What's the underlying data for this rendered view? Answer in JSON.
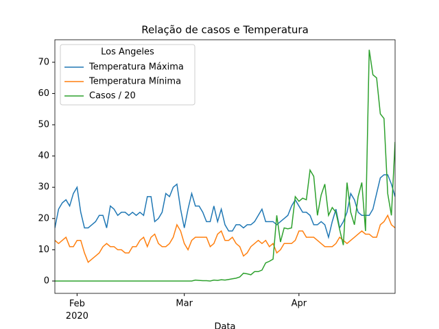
{
  "chart_data": {
    "type": "line",
    "title": "Relação de casos e Temperatura",
    "x_label": "Data",
    "legend_title": "Los Angeles",
    "legend": "upper left",
    "x": [
      0,
      1,
      2,
      3,
      4,
      5,
      6,
      7,
      8,
      9,
      10,
      11,
      12,
      13,
      14,
      15,
      16,
      17,
      18,
      19,
      20,
      21,
      22,
      23,
      24,
      25,
      26,
      27,
      28,
      29,
      30,
      31,
      32,
      33,
      34,
      35,
      36,
      37,
      38,
      39,
      40,
      41,
      42,
      43,
      44,
      45,
      46,
      47,
      48,
      49,
      50,
      51,
      52,
      53,
      54,
      55,
      56,
      57,
      58,
      59,
      60,
      61,
      62,
      63,
      64,
      65,
      66,
      67,
      68,
      69,
      70,
      71,
      72,
      73,
      74,
      75,
      76,
      77,
      78,
      79,
      80,
      81,
      82,
      83,
      84,
      85,
      86,
      87,
      88,
      89,
      90,
      91,
      92
    ],
    "xlim": [
      0,
      92
    ],
    "xticks": [
      {
        "value": 6,
        "label": "Feb\n2020"
      },
      {
        "value": 35,
        "label": "Mar"
      },
      {
        "value": 66,
        "label": "Apr"
      }
    ],
    "ylim": [
      -3.95,
      77.2
    ],
    "yticks": [
      0,
      10,
      20,
      30,
      40,
      50,
      60,
      70
    ],
    "series": [
      {
        "name": "Temperatura Máxima",
        "color": "#1f77b4",
        "values": [
          17,
          23,
          25,
          26,
          24,
          28,
          30,
          22,
          17,
          17,
          18,
          19,
          21,
          21,
          17,
          24,
          23,
          21,
          22,
          22,
          21,
          22,
          21,
          22,
          21,
          27,
          27,
          19,
          20,
          22,
          28,
          27,
          30,
          31,
          23,
          17,
          23,
          28,
          24,
          24,
          22,
          19,
          19,
          24,
          19,
          23,
          18,
          16,
          16,
          18,
          18,
          17,
          18,
          18,
          19,
          21,
          23,
          19,
          19,
          19,
          18,
          19,
          20,
          21,
          24,
          26,
          24,
          22,
          22,
          21,
          18,
          18,
          19,
          18,
          14,
          19,
          23,
          17,
          19,
          22,
          28,
          26,
          22,
          21,
          21,
          21,
          23,
          28,
          33,
          34,
          34,
          31,
          27
        ]
      },
      {
        "name": "Temperatura Mínima",
        "color": "#ff7f0e",
        "values": [
          13,
          12,
          13,
          14,
          11,
          11,
          13,
          13,
          9,
          6,
          7,
          8,
          9,
          11,
          12,
          11,
          11,
          10,
          10,
          9,
          9,
          11,
          11,
          13,
          14,
          11,
          14,
          15,
          12,
          11,
          11,
          12,
          14,
          18,
          16,
          12,
          10,
          13,
          14,
          14,
          14,
          14,
          11,
          12,
          15,
          16,
          13,
          13,
          14,
          12,
          11,
          8,
          9,
          11,
          12,
          13,
          12,
          13,
          11,
          12,
          9,
          10,
          12,
          12,
          12,
          13,
          16,
          16,
          14,
          14,
          14,
          13,
          12,
          11,
          11,
          11,
          12,
          14,
          13,
          12,
          13,
          14,
          15,
          16,
          15,
          15,
          14,
          14,
          18,
          19,
          21,
          18,
          17
        ]
      },
      {
        "name": "Casos / 20",
        "color": "#2ca02c",
        "values": [
          0,
          0,
          0,
          0,
          0,
          0,
          0,
          0,
          0,
          0,
          0,
          0,
          0,
          0,
          0,
          0,
          0,
          0,
          0,
          0,
          0,
          0,
          0,
          0,
          0,
          0,
          0,
          0,
          0,
          0,
          0,
          0,
          0,
          0,
          0,
          0,
          0,
          0,
          0.3,
          0.2,
          0.1,
          0.1,
          0,
          0.3,
          0.2,
          0.4,
          0.3,
          0.5,
          0.7,
          0.9,
          1.3,
          2.5,
          2.3,
          2,
          3,
          3,
          3.5,
          5.8,
          6.3,
          7,
          21,
          12.5,
          17,
          16.7,
          17,
          27,
          25.5,
          26.5,
          26,
          35.5,
          33.5,
          21,
          27.5,
          31,
          21,
          23.5,
          22,
          16.5,
          11.5,
          31.5,
          22,
          18,
          27,
          31.5,
          16,
          74,
          66,
          65,
          53.5,
          52,
          28,
          21,
          44.5
        ]
      }
    ]
  }
}
